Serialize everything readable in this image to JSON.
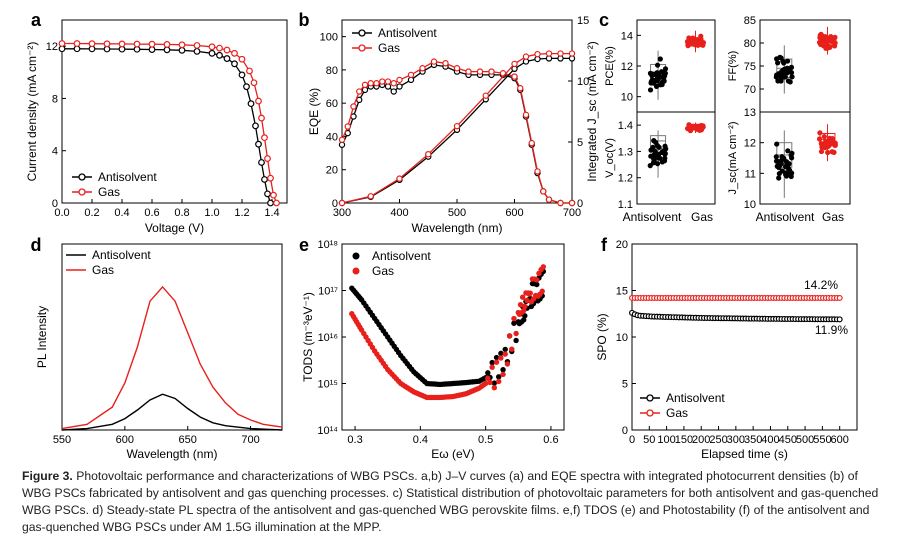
{
  "colors": {
    "antisolvent": "#000000",
    "gas": "#e8201c",
    "box_black": "#777777",
    "box_red": "#e8201c"
  },
  "chart_data": [
    {
      "panel": "a",
      "type": "line",
      "xlabel": "Voltage (V)",
      "ylabel": "Current density (mA cm⁻²)",
      "xlim": [
        0,
        1.5
      ],
      "ylim": [
        0,
        14
      ],
      "xticks": [
        "0.0",
        "0.2",
        "0.4",
        "0.6",
        "0.8",
        "1.0",
        "1.2",
        "1.4"
      ],
      "yticks": [
        "0",
        "4",
        "8",
        "12"
      ],
      "legend": [
        "Antisolvent",
        "Gas"
      ],
      "series": [
        {
          "name": "Antisolvent",
          "x": [
            0,
            0.1,
            0.2,
            0.3,
            0.4,
            0.5,
            0.6,
            0.7,
            0.8,
            0.9,
            1.0,
            1.05,
            1.1,
            1.15,
            1.2,
            1.23,
            1.26,
            1.29,
            1.31,
            1.33,
            1.35,
            1.37,
            1.39
          ],
          "y": [
            11.8,
            11.8,
            11.79,
            11.78,
            11.77,
            11.76,
            11.74,
            11.72,
            11.68,
            11.6,
            11.45,
            11.3,
            11.05,
            10.65,
            9.8,
            8.9,
            7.6,
            5.9,
            4.5,
            3.1,
            1.8,
            0.7,
            0
          ]
        },
        {
          "name": "Gas",
          "x": [
            0,
            0.1,
            0.2,
            0.3,
            0.4,
            0.5,
            0.6,
            0.7,
            0.8,
            0.9,
            1.0,
            1.05,
            1.1,
            1.15,
            1.2,
            1.25,
            1.28,
            1.31,
            1.33,
            1.35,
            1.37,
            1.39,
            1.41,
            1.43
          ],
          "y": [
            12.2,
            12.2,
            12.19,
            12.18,
            12.17,
            12.16,
            12.15,
            12.13,
            12.1,
            12.05,
            11.95,
            11.85,
            11.7,
            11.45,
            11.0,
            10.1,
            9.2,
            7.8,
            6.5,
            5.0,
            3.4,
            1.9,
            0.6,
            0
          ]
        }
      ]
    },
    {
      "panel": "b",
      "type": "line",
      "xlabel": "Wavelength (nm)",
      "ylabel": "EQE (%)",
      "y2label": "Integrated J_sc (mA cm⁻²)",
      "xlim": [
        300,
        700
      ],
      "ylim": [
        0,
        110
      ],
      "y2lim": [
        0,
        15
      ],
      "xticks": [
        "300",
        "400",
        "500",
        "600",
        "700"
      ],
      "yticks": [
        "0",
        "20",
        "40",
        "60",
        "80",
        "100"
      ],
      "y2ticks": [
        "0",
        "5",
        "10",
        "15"
      ],
      "legend": [
        "Antisolvent",
        "Gas"
      ],
      "series": [
        {
          "name": "Antisolvent EQE",
          "x": [
            300,
            310,
            320,
            330,
            340,
            350,
            360,
            370,
            380,
            390,
            400,
            420,
            440,
            460,
            480,
            500,
            520,
            540,
            560,
            580,
            600,
            610,
            620,
            630,
            640,
            650,
            660,
            680,
            700
          ],
          "y": [
            35,
            42,
            52,
            62,
            68,
            70,
            70,
            71,
            70,
            67,
            70,
            74,
            79,
            83,
            82,
            79,
            77,
            77,
            77,
            77,
            75,
            68,
            52,
            35,
            18,
            7,
            2,
            0,
            0
          ]
        },
        {
          "name": "Gas EQE",
          "x": [
            300,
            310,
            320,
            330,
            340,
            350,
            360,
            370,
            380,
            390,
            400,
            420,
            440,
            460,
            480,
            500,
            520,
            540,
            560,
            580,
            600,
            610,
            620,
            630,
            640,
            650,
            660,
            680,
            700
          ],
          "y": [
            38,
            46,
            58,
            67,
            71,
            72,
            72,
            73,
            73,
            72,
            74,
            77,
            81,
            85,
            84,
            81,
            79,
            79,
            79,
            78,
            76,
            69,
            53,
            36,
            19,
            7,
            2,
            0,
            0
          ]
        },
        {
          "name": "Antisolvent Jsc",
          "x": [
            300,
            350,
            400,
            450,
            500,
            550,
            600,
            620,
            640,
            660,
            680,
            700
          ],
          "y": [
            0,
            0.5,
            1.9,
            3.8,
            6.0,
            8.5,
            11.0,
            11.6,
            11.8,
            11.85,
            11.85,
            11.85
          ]
        },
        {
          "name": "Gas Jsc",
          "x": [
            300,
            350,
            400,
            450,
            500,
            550,
            600,
            620,
            640,
            660,
            680,
            700
          ],
          "y": [
            0,
            0.55,
            2.0,
            4.0,
            6.3,
            8.8,
            11.4,
            12.0,
            12.2,
            12.25,
            12.25,
            12.25
          ]
        }
      ]
    },
    {
      "panel": "c",
      "type": "box",
      "categories": [
        "Antisolvent",
        "Gas"
      ],
      "subplots": [
        {
          "ylabel": "PCE(%)",
          "ylim": [
            9,
            15
          ],
          "yticks": [
            "10",
            "12",
            "14"
          ],
          "antisolvent": {
            "q1": 10.9,
            "median": 11.5,
            "q3": 12.1,
            "min": 9.8,
            "max": 13.0
          },
          "gas": {
            "q1": 13.3,
            "median": 13.5,
            "q3": 13.8,
            "min": 12.9,
            "max": 14.3
          }
        },
        {
          "ylabel": "FF(%)",
          "ylim": [
            65,
            85
          ],
          "yticks": [
            "70",
            "75",
            "80",
            "85"
          ],
          "antisolvent": {
            "q1": 72.5,
            "median": 74.5,
            "q3": 76.5,
            "min": 69.0,
            "max": 79.5
          },
          "gas": {
            "q1": 79.5,
            "median": 80.5,
            "q3": 81.5,
            "min": 77.5,
            "max": 83.5
          }
        },
        {
          "ylabel": "V_oc(V)",
          "ylim": [
            1.1,
            1.45
          ],
          "yticks": [
            "1.1",
            "1.2",
            "1.3",
            "1.4"
          ],
          "antisolvent": {
            "q1": 1.31,
            "median": 1.34,
            "q3": 1.36,
            "min": 1.2,
            "max": 1.38
          },
          "gas": {
            "q1": 1.385,
            "median": 1.39,
            "q3": 1.395,
            "min": 1.37,
            "max": 1.41
          }
        },
        {
          "ylabel": "J_sc(mA cm⁻²)",
          "ylim": [
            10,
            13
          ],
          "yticks": [
            "10",
            "11",
            "12",
            "13"
          ],
          "antisolvent": {
            "q1": 11.2,
            "median": 11.6,
            "q3": 12.0,
            "min": 10.2,
            "max": 12.4
          },
          "gas": {
            "q1": 11.9,
            "median": 12.1,
            "q3": 12.3,
            "min": 11.4,
            "max": 12.6
          }
        }
      ]
    },
    {
      "panel": "d",
      "type": "line",
      "xlabel": "Wavelength (nm)",
      "ylabel": "PL Intensity",
      "xlim": [
        550,
        725
      ],
      "ylim": [
        0,
        1.3
      ],
      "xticks": [
        "550",
        "600",
        "650",
        "700"
      ],
      "legend": [
        "Antisolvent",
        "Gas"
      ],
      "series": [
        {
          "name": "Antisolvent",
          "x": [
            550,
            570,
            590,
            600,
            610,
            620,
            630,
            640,
            650,
            660,
            670,
            680,
            700,
            725
          ],
          "y": [
            0,
            0.01,
            0.04,
            0.08,
            0.14,
            0.21,
            0.25,
            0.22,
            0.15,
            0.09,
            0.05,
            0.03,
            0.01,
            0.0
          ]
        },
        {
          "name": "Gas",
          "x": [
            550,
            570,
            590,
            600,
            610,
            620,
            630,
            640,
            650,
            660,
            670,
            680,
            690,
            700,
            710,
            725
          ],
          "y": [
            0.01,
            0.04,
            0.16,
            0.33,
            0.58,
            0.9,
            1.0,
            0.9,
            0.68,
            0.46,
            0.3,
            0.19,
            0.11,
            0.07,
            0.04,
            0.02
          ]
        }
      ]
    },
    {
      "panel": "e",
      "type": "scatter",
      "xlabel": "Eω (eV)",
      "ylabel": "TODS (m⁻³eV⁻¹)",
      "xlim": [
        0.28,
        0.62
      ],
      "ylim": [
        14,
        18
      ],
      "yscale": "log10",
      "xticks": [
        "0.3",
        "0.4",
        "0.5",
        "0.6"
      ],
      "yticks": [
        "10¹⁴",
        "10¹⁵",
        "10¹⁶",
        "10¹⁷",
        "10¹⁸"
      ],
      "legend": [
        "Antisolvent",
        "Gas"
      ],
      "series": [
        {
          "name": "Antisolvent",
          "x": [
            0.295,
            0.31,
            0.33,
            0.35,
            0.37,
            0.39,
            0.41,
            0.43,
            0.45,
            0.47,
            0.49,
            0.51,
            0.53,
            0.55,
            0.56,
            0.57,
            0.58,
            0.59
          ],
          "y": [
            17.05,
            16.8,
            16.4,
            16.0,
            15.6,
            15.25,
            15.0,
            14.98,
            15.0,
            15.02,
            15.05,
            15.2,
            15.55,
            16.3,
            16.6,
            16.9,
            17.0,
            17.2
          ]
        },
        {
          "name": "Gas",
          "x": [
            0.295,
            0.31,
            0.33,
            0.35,
            0.37,
            0.39,
            0.41,
            0.43,
            0.45,
            0.47,
            0.49,
            0.51,
            0.53,
            0.55,
            0.56,
            0.57,
            0.58,
            0.59
          ],
          "y": [
            16.5,
            16.15,
            15.7,
            15.3,
            15.0,
            14.82,
            14.7,
            14.7,
            14.72,
            14.78,
            14.9,
            15.1,
            15.45,
            16.5,
            16.8,
            17.0,
            17.1,
            17.3
          ]
        }
      ]
    },
    {
      "panel": "f",
      "type": "line",
      "xlabel": "Elapsed time (s)",
      "ylabel": "SPO (%)",
      "xlim": [
        0,
        650
      ],
      "ylim": [
        0,
        20
      ],
      "xticks": [
        "0",
        "50",
        "100",
        "150",
        "200",
        "250",
        "300",
        "350",
        "400",
        "450",
        "500",
        "550",
        "600"
      ],
      "yticks": [
        "0",
        "5",
        "10",
        "15",
        "20"
      ],
      "legend": [
        "Antisolvent",
        "Gas"
      ],
      "annotations": [
        "14.2%",
        "11.9%"
      ],
      "series": [
        {
          "name": "Antisolvent",
          "x": [
            0,
            10,
            20,
            40,
            60,
            100,
            150,
            200,
            300,
            400,
            500,
            600
          ],
          "y": [
            12.6,
            12.4,
            12.3,
            12.25,
            12.2,
            12.15,
            12.1,
            12.05,
            12.0,
            11.95,
            11.92,
            11.9
          ]
        },
        {
          "name": "Gas",
          "x": [
            0,
            100,
            200,
            300,
            400,
            500,
            600
          ],
          "y": [
            14.2,
            14.2,
            14.2,
            14.2,
            14.2,
            14.2,
            14.2
          ]
        }
      ]
    }
  ],
  "panel_labels": [
    "a",
    "b",
    "c",
    "d",
    "e",
    "f"
  ],
  "caption": {
    "label": "Figure 3.",
    "text": "Photovoltaic performance and characterizations of WBG PSCs. a,b) J–V curves (a) and EQE spectra with integrated photocurrent densities (b) of WBG PSCs fabricated by antisolvent and gas quenching processes. c) Statistical distribution of photovoltaic parameters for both antisolvent and gas-quenched WBG PSCs. d) Steady-state PL spectra of the antisolvent and gas-quenched WBG perovskite films. e,f) TDOS (e) and Photostability (f) of the antisolvent and gas-quenched WBG PSCs under AM 1.5G illumination at the MPP."
  }
}
